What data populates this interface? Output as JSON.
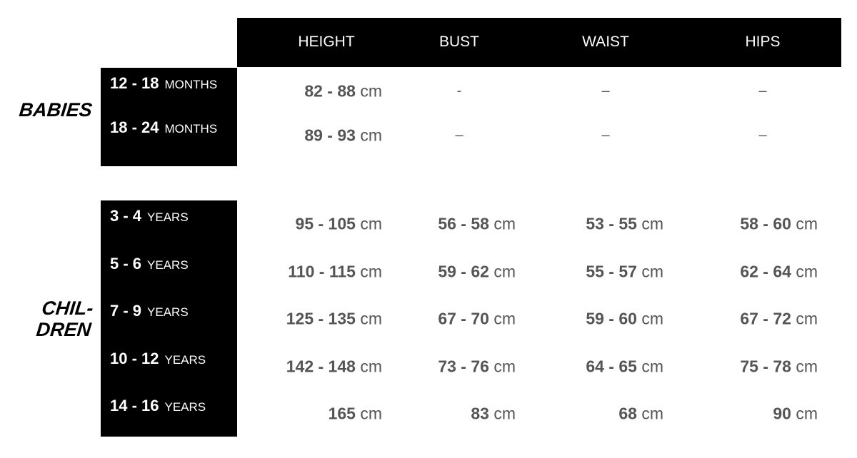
{
  "columns": [
    "HEIGHT",
    "BUST",
    "WAIST",
    "HIPS"
  ],
  "groups": [
    {
      "name": "BABIES",
      "rows": [
        {
          "range": "12 - 18",
          "unit": "MONTHS",
          "values": [
            {
              "num": "82 - 88",
              "unit": "cm"
            },
            {
              "dash": "-"
            },
            {
              "dash": "–"
            },
            {
              "dash": "–"
            }
          ]
        },
        {
          "range": "18 - 24",
          "unit": "MONTHS",
          "values": [
            {
              "num": "89 - 93",
              "unit": "cm"
            },
            {
              "dash": "–"
            },
            {
              "dash": "–"
            },
            {
              "dash": "–"
            }
          ]
        }
      ]
    },
    {
      "name_line1": "CHIL-",
      "name_line2": "DREN",
      "rows": [
        {
          "range": "3 - 4",
          "unit": "YEARS",
          "values": [
            {
              "num": "95 - 105",
              "unit": "cm"
            },
            {
              "num": "56 - 58",
              "unit": "cm"
            },
            {
              "num": "53 - 55",
              "unit": "cm"
            },
            {
              "num": "58 - 60",
              "unit": "cm"
            }
          ]
        },
        {
          "range": "5 - 6",
          "unit": "YEARS",
          "values": [
            {
              "num": "110 - 115",
              "unit": "cm"
            },
            {
              "num": "59 - 62",
              "unit": "cm"
            },
            {
              "num": "55 - 57",
              "unit": "cm"
            },
            {
              "num": "62 - 64",
              "unit": "cm"
            }
          ]
        },
        {
          "range": "7 - 9",
          "unit": "YEARS",
          "values": [
            {
              "num": "125 - 135",
              "unit": "cm"
            },
            {
              "num": "67 - 70",
              "unit": "cm"
            },
            {
              "num": "59 - 60",
              "unit": "cm"
            },
            {
              "num": "67 - 72",
              "unit": "cm"
            }
          ]
        },
        {
          "range": "10 - 12",
          "unit": "YEARS",
          "values": [
            {
              "num": "142 - 148",
              "unit": "cm"
            },
            {
              "num": "73 - 76",
              "unit": "cm"
            },
            {
              "num": "64 - 65",
              "unit": "cm"
            },
            {
              "num": "75 - 78",
              "unit": "cm"
            }
          ]
        },
        {
          "range": "14 - 16",
          "unit": "YEARS",
          "values": [
            {
              "num": "165",
              "unit": "cm"
            },
            {
              "num": "83",
              "unit": "cm"
            },
            {
              "num": "68",
              "unit": "cm"
            },
            {
              "num": "90",
              "unit": "cm"
            }
          ]
        }
      ]
    }
  ]
}
